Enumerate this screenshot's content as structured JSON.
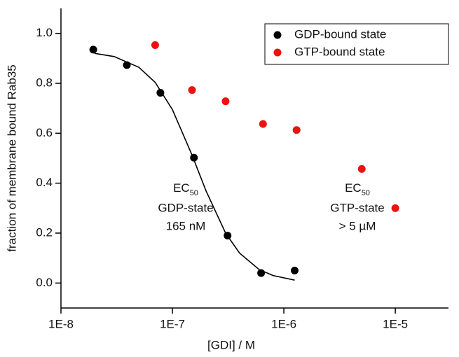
{
  "chart_data": {
    "type": "scatter",
    "xlabel": "[GDI] / M",
    "ylabel": "fraction of membrane bound Rab35",
    "xscale": "log",
    "xlim": [
      1e-08,
      3e-05
    ],
    "xticks": [
      {
        "value": 1e-08,
        "label": "1E-8"
      },
      {
        "value": 1e-07,
        "label": "1E-7"
      },
      {
        "value": 1e-06,
        "label": "1E-6"
      },
      {
        "value": 1e-05,
        "label": "1E-5"
      }
    ],
    "ylim": [
      -0.1,
      1.1
    ],
    "yticks": [
      {
        "value": 0,
        "label": "0.0"
      },
      0.2,
      0.4,
      0.6,
      0.8,
      {
        "value": 1,
        "label": "1.0"
      }
    ],
    "legend": "upper right",
    "series": [
      {
        "name": "GDP-bound state",
        "color": "#000000",
        "x": [
          1.95e-08,
          3.9e-08,
          7.8e-08,
          1.56e-07,
          3.125e-07,
          6.25e-07,
          1.25e-06
        ],
        "values": [
          0.935,
          0.873,
          0.762,
          0.502,
          0.19,
          0.04,
          0.05
        ]
      },
      {
        "name": "GTP-bound state",
        "color": "#ee1111",
        "x": [
          7e-08,
          1.5e-07,
          3e-07,
          6.5e-07,
          1.3e-06,
          5e-06,
          1e-05
        ],
        "values": [
          0.953,
          0.773,
          0.728,
          0.637,
          0.613,
          0.457,
          0.3
        ]
      }
    ],
    "fit": {
      "color": "#000000",
      "x": [
        2e-08,
        3e-08,
        5e-08,
        7e-08,
        1e-07,
        1.5e-07,
        2e-07,
        3e-07,
        4e-07,
        6e-07,
        8e-07,
        1.25e-06
      ],
      "values": [
        0.92,
        0.907,
        0.864,
        0.804,
        0.695,
        0.513,
        0.37,
        0.2,
        0.12,
        0.054,
        0.03,
        0.0116
      ]
    },
    "annotations": [
      {
        "text": "EC",
        "subscript": "50",
        "lines": [
          "GDP-state",
          "165 nM"
        ]
      },
      {
        "text": "EC",
        "subscript": "50",
        "lines": [
          "GTP-state",
          "> 5 µM"
        ]
      }
    ]
  }
}
